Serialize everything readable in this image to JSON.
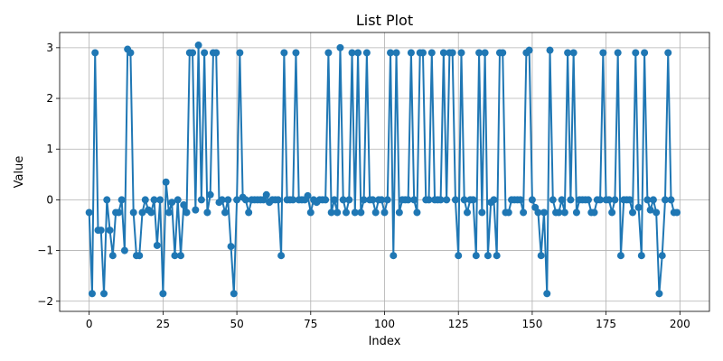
{
  "chart_data": {
    "type": "line",
    "title": "List Plot",
    "xlabel": "Index",
    "ylabel": "Value",
    "xlim": [
      -10,
      210
    ],
    "ylim": [
      -2.2,
      3.3
    ],
    "x_ticks": [
      0,
      25,
      50,
      75,
      100,
      125,
      150,
      175,
      200
    ],
    "y_ticks": [
      -2,
      -1,
      0,
      1,
      2,
      3
    ],
    "grid": true,
    "marker": "circle",
    "line_color": "#1f77b4",
    "series": [
      {
        "x": [
          0,
          1,
          2,
          3,
          4,
          5,
          6,
          7,
          8,
          9,
          10,
          11,
          12,
          13,
          14,
          15,
          16,
          17,
          18,
          19,
          20,
          21,
          22,
          23,
          24,
          25,
          26,
          27,
          28,
          29,
          30,
          31,
          32,
          33,
          34,
          35,
          36,
          37,
          38,
          39,
          40,
          41,
          42,
          43,
          44,
          45,
          46,
          47,
          48,
          49,
          50,
          51,
          52,
          53,
          54,
          55,
          56,
          57,
          58,
          59,
          60,
          61,
          62,
          63,
          64,
          65,
          66,
          67,
          68,
          69,
          70,
          71,
          72,
          73,
          74,
          75,
          76,
          77,
          78,
          79,
          80,
          81,
          82,
          83,
          84,
          85,
          86,
          87,
          88,
          89,
          90,
          91,
          92,
          93,
          94,
          95,
          96,
          97,
          98,
          99,
          100,
          101,
          102,
          103,
          104,
          105,
          106,
          107,
          108,
          109,
          110,
          111,
          112,
          113,
          114,
          115,
          116,
          117,
          118,
          119,
          120,
          121,
          122,
          123,
          124,
          125,
          126,
          127,
          128,
          129,
          130,
          131,
          132,
          133,
          134,
          135,
          136,
          137,
          138,
          139,
          140,
          141,
          142,
          143,
          144,
          145,
          146,
          147,
          148,
          149,
          150,
          151,
          152,
          153,
          154,
          155,
          156,
          157,
          158,
          159,
          160,
          161,
          162,
          163,
          164,
          165,
          166,
          167,
          168,
          169,
          170,
          171,
          172,
          173,
          174,
          175,
          176,
          177,
          178,
          179,
          180,
          181,
          182,
          183,
          184,
          185,
          186,
          187,
          188,
          189,
          190,
          191,
          192,
          193,
          194,
          195,
          196,
          197,
          198,
          199
        ],
        "values": [
          -0.25,
          -1.85,
          2.9,
          -0.6,
          -0.6,
          -1.85,
          0.0,
          -0.6,
          -1.1,
          -0.25,
          -0.25,
          0.0,
          -1.0,
          2.97,
          2.9,
          -0.25,
          -1.1,
          -1.1,
          -0.25,
          0.0,
          -0.2,
          -0.25,
          0.0,
          -0.9,
          0.0,
          -1.85,
          0.35,
          -0.25,
          -0.05,
          -1.1,
          0.0,
          -1.1,
          -0.1,
          -0.25,
          2.9,
          2.9,
          -0.2,
          3.05,
          0.0,
          2.9,
          -0.25,
          0.1,
          2.9,
          2.9,
          -0.05,
          0.0,
          -0.25,
          0.0,
          -0.92,
          -1.85,
          0.0,
          2.9,
          0.05,
          0.0,
          -0.25,
          0.0,
          0.0,
          0.0,
          0.0,
          0.0,
          0.1,
          -0.05,
          0.0,
          0.0,
          0.0,
          -1.1,
          2.9,
          0.0,
          0.0,
          0.0,
          2.9,
          0.0,
          0.0,
          0.0,
          0.08,
          -0.25,
          0.0,
          -0.05,
          0.0,
          0.0,
          0.0,
          2.9,
          -0.25,
          0.0,
          -0.25,
          3.0,
          0.0,
          -0.25,
          0.0,
          2.9,
          -0.25,
          2.9,
          -0.25,
          0.0,
          2.9,
          0.0,
          0.0,
          -0.25,
          0.0,
          0.0,
          -0.25,
          0.0,
          2.9,
          -1.1,
          2.9,
          -0.25,
          0.0,
          0.0,
          0.0,
          2.9,
          0.0,
          -0.25,
          2.9,
          2.9,
          0.0,
          0.0,
          2.9,
          0.0,
          0.0,
          0.0,
          2.9,
          0.0,
          2.9,
          2.9,
          0.0,
          -1.1,
          2.9,
          0.0,
          -0.25,
          0.0,
          0.0,
          -1.1,
          2.9,
          -0.25,
          2.9,
          -1.1,
          -0.05,
          0.0,
          -1.1,
          2.9,
          2.9,
          -0.25,
          -0.25,
          0.0,
          0.0,
          0.0,
          0.0,
          -0.25,
          2.9,
          2.95,
          0.0,
          -0.15,
          -0.25,
          -1.1,
          -0.25,
          -1.85,
          2.95,
          0.0,
          -0.25,
          -0.25,
          0.0,
          -0.25,
          2.9,
          0.0,
          2.9,
          -0.25,
          0.0,
          0.0,
          0.0,
          0.0,
          -0.25,
          -0.25,
          0.0,
          0.0,
          2.9,
          0.0,
          0.0,
          -0.25,
          0.0,
          2.9,
          -1.1,
          0.0,
          0.0,
          0.0,
          -0.25,
          2.9,
          -0.15,
          -1.1,
          2.9,
          0.0,
          -0.2,
          0.0,
          -0.25,
          -1.85,
          -1.1,
          0.0,
          2.9,
          0.0,
          -0.25,
          -0.25
        ]
      }
    ]
  }
}
